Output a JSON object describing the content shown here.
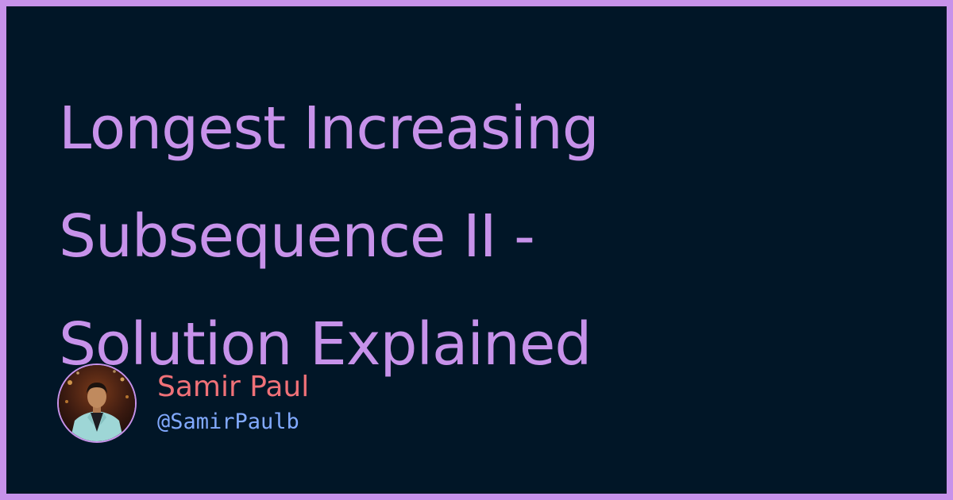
{
  "title_lines": [
    "Longest Increasing",
    "Subsequence II -",
    "Solution Explained"
  ],
  "author": {
    "name": "Samir Paul",
    "handle": "@SamirPaulb"
  },
  "colors": {
    "frame": "#c792ea",
    "background": "#011627",
    "title": "#c792ea",
    "author_name": "#f07178",
    "author_handle": "#82aaff"
  }
}
